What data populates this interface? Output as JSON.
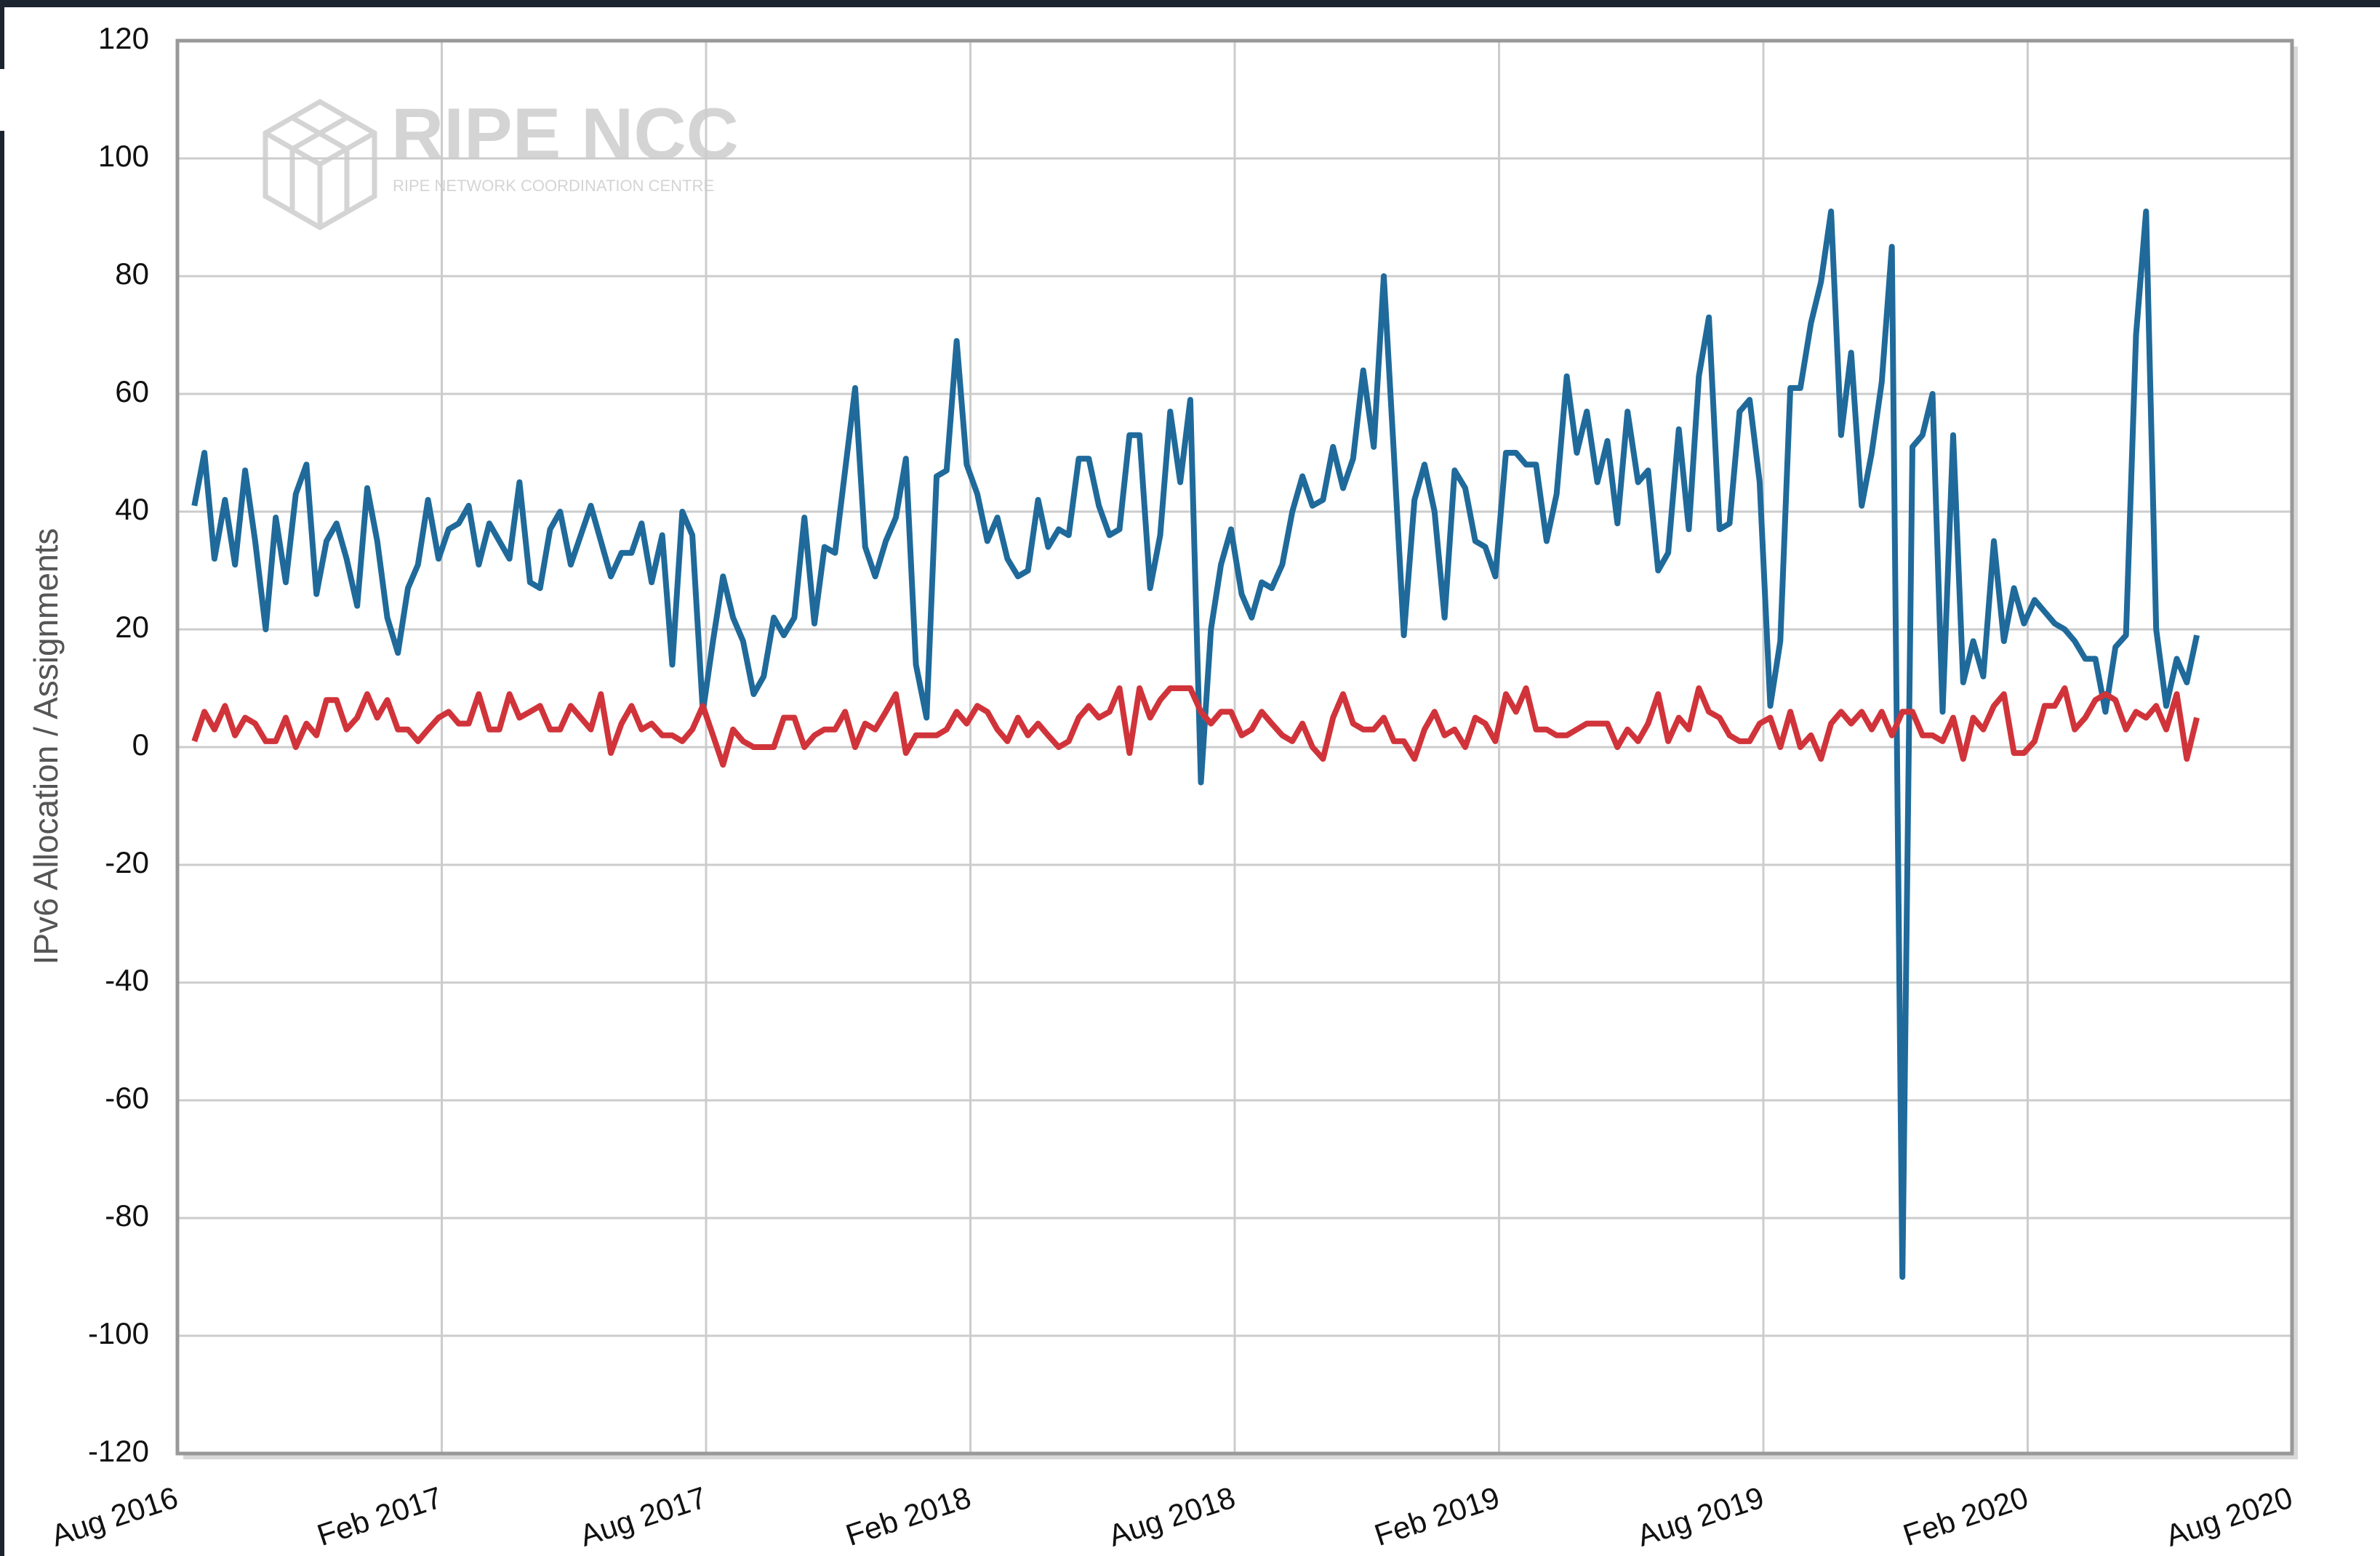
{
  "chart_data": {
    "type": "line",
    "watermark": {
      "title": "RIPE NCC",
      "subtitle": "RIPE NETWORK COORDINATION CENTRE"
    },
    "y_label": "IPv6 Allocation / Assignments",
    "xlim": [
      2016.583,
      2020.583
    ],
    "xticks": [
      {
        "value": 2016.583,
        "label": "Aug 2016"
      },
      {
        "value": 2017.083,
        "label": "Feb 2017"
      },
      {
        "value": 2017.583,
        "label": "Aug 2017"
      },
      {
        "value": 2018.083,
        "label": "Feb 2018"
      },
      {
        "value": 2018.583,
        "label": "Aug 2018"
      },
      {
        "value": 2019.083,
        "label": "Feb 2019"
      },
      {
        "value": 2019.583,
        "label": "Aug 2019"
      },
      {
        "value": 2020.083,
        "label": "Feb 2020"
      },
      {
        "value": 2020.583,
        "label": "Aug 2020"
      }
    ],
    "ylim": [
      -120,
      120
    ],
    "yticks": [
      -120,
      -100,
      -80,
      -60,
      -40,
      -20,
      0,
      20,
      40,
      60,
      80,
      100,
      120
    ],
    "grid": true,
    "x": [
      2016.615,
      2016.634,
      2016.653,
      2016.673,
      2016.692,
      2016.711,
      2016.73,
      2016.75,
      2016.769,
      2016.788,
      2016.807,
      2016.827,
      2016.846,
      2016.865,
      2016.884,
      2016.903,
      2016.923,
      2016.942,
      2016.961,
      2016.98,
      2017.0,
      2017.019,
      2017.038,
      2017.057,
      2017.077,
      2017.096,
      2017.115,
      2017.134,
      2017.153,
      2017.173,
      2017.192,
      2017.211,
      2017.23,
      2017.25,
      2017.269,
      2017.288,
      2017.307,
      2017.327,
      2017.346,
      2017.365,
      2017.384,
      2017.403,
      2017.423,
      2017.442,
      2017.461,
      2017.48,
      2017.5,
      2017.519,
      2017.538,
      2017.557,
      2017.577,
      2017.596,
      2017.615,
      2017.634,
      2017.653,
      2017.673,
      2017.692,
      2017.711,
      2017.73,
      2017.75,
      2017.769,
      2017.788,
      2017.807,
      2017.827,
      2017.846,
      2017.865,
      2017.884,
      2017.903,
      2017.923,
      2017.942,
      2017.961,
      2017.98,
      2018.0,
      2018.019,
      2018.038,
      2018.057,
      2018.076,
      2018.096,
      2018.115,
      2018.134,
      2018.153,
      2018.173,
      2018.192,
      2018.211,
      2018.23,
      2018.25,
      2018.269,
      2018.288,
      2018.307,
      2018.326,
      2018.346,
      2018.365,
      2018.384,
      2018.403,
      2018.423,
      2018.442,
      2018.461,
      2018.48,
      2018.499,
      2018.519,
      2018.538,
      2018.557,
      2018.576,
      2018.596,
      2018.615,
      2018.634,
      2018.653,
      2018.673,
      2018.692,
      2018.711,
      2018.73,
      2018.75,
      2018.769,
      2018.788,
      2018.807,
      2018.826,
      2018.846,
      2018.865,
      2018.884,
      2018.903,
      2018.923,
      2018.942,
      2018.961,
      2018.98,
      2018.999,
      2019.019,
      2019.038,
      2019.057,
      2019.076,
      2019.096,
      2019.115,
      2019.134,
      2019.153,
      2019.173,
      2019.192,
      2019.211,
      2019.23,
      2019.249,
      2019.269,
      2019.288,
      2019.307,
      2019.326,
      2019.346,
      2019.365,
      2019.384,
      2019.403,
      2019.423,
      2019.442,
      2019.461,
      2019.48,
      2019.5,
      2019.519,
      2019.538,
      2019.557,
      2019.576,
      2019.596,
      2019.615,
      2019.634,
      2019.653,
      2019.673,
      2019.692,
      2019.711,
      2019.73,
      2019.749,
      2019.769,
      2019.788,
      2019.807,
      2019.826,
      2019.846,
      2019.865,
      2019.884,
      2019.903,
      2019.922,
      2019.942,
      2019.961,
      2019.98,
      2019.999,
      2020.019,
      2020.038,
      2020.057,
      2020.076,
      2020.096,
      2020.115,
      2020.134,
      2020.153,
      2020.172,
      2020.192,
      2020.211,
      2020.23,
      2020.249,
      2020.269,
      2020.288,
      2020.307,
      2020.326,
      2020.345,
      2020.365,
      2020.384,
      2020.403
    ],
    "series": [
      {
        "color": "#1f6a9a",
        "values": [
          41,
          50,
          32,
          42,
          31,
          47,
          35,
          20,
          39,
          28,
          43,
          48,
          26,
          35,
          38,
          32,
          24,
          44,
          35,
          22,
          16,
          27,
          31,
          42,
          32,
          37,
          38,
          41,
          31,
          38,
          35,
          32,
          45,
          28,
          27,
          37,
          40,
          31,
          36,
          41,
          35,
          29,
          33,
          33,
          38,
          28,
          36,
          14,
          40,
          36,
          6,
          18,
          29,
          22,
          18,
          9,
          12,
          22,
          19,
          22,
          39,
          21,
          34,
          33,
          47,
          61,
          34,
          29,
          35,
          39,
          49,
          14,
          5,
          46,
          47,
          69,
          48,
          43,
          35,
          39,
          32,
          29,
          30,
          42,
          34,
          37,
          36,
          49,
          49,
          41,
          36,
          37,
          53,
          53,
          27,
          36,
          57,
          45,
          59,
          -6,
          20,
          31,
          37,
          26,
          22,
          28,
          27,
          31,
          40,
          46,
          41,
          42,
          51,
          44,
          49,
          64,
          51,
          80,
          50,
          19,
          42,
          48,
          40,
          22,
          47,
          44,
          35,
          34,
          29,
          50,
          50,
          48,
          48,
          35,
          43,
          63,
          50,
          57,
          45,
          52,
          38,
          57,
          45,
          47,
          30,
          33,
          54,
          37,
          63,
          73,
          37,
          38,
          57,
          59,
          45,
          7,
          18,
          61,
          61,
          72,
          79,
          91,
          53,
          67,
          41,
          50,
          62,
          85,
          -90,
          51,
          53,
          60,
          6,
          53,
          11,
          18,
          12,
          35,
          18,
          27,
          21,
          25,
          23,
          21,
          20,
          18,
          15,
          15,
          6,
          17,
          19,
          70,
          91,
          20,
          7,
          15,
          11,
          19
        ]
      },
      {
        "color": "#d0343a",
        "values": [
          1,
          6,
          3,
          7,
          2,
          5,
          4,
          1,
          1,
          5,
          0,
          4,
          2,
          8,
          8,
          3,
          5,
          9,
          5,
          8,
          3,
          3,
          1,
          3,
          5,
          6,
          4,
          4,
          9,
          3,
          3,
          9,
          5,
          6,
          7,
          3,
          3,
          7,
          5,
          3,
          9,
          -1,
          4,
          7,
          3,
          4,
          2,
          2,
          1,
          3,
          7,
          2,
          -3,
          3,
          1,
          0,
          0,
          0,
          5,
          5,
          0,
          2,
          3,
          3,
          6,
          0,
          4,
          3,
          6,
          9,
          -1,
          2,
          2,
          2,
          3,
          6,
          4,
          7,
          6,
          3,
          1,
          5,
          2,
          4,
          2,
          0,
          1,
          5,
          7,
          5,
          6,
          10,
          -1,
          10,
          5,
          8,
          10,
          10,
          10,
          6,
          4,
          6,
          6,
          2,
          3,
          6,
          4,
          2,
          1,
          4,
          0,
          -2,
          5,
          9,
          4,
          3,
          3,
          5,
          1,
          1,
          -2,
          3,
          6,
          2,
          3,
          0,
          5,
          4,
          1,
          9,
          6,
          10,
          3,
          3,
          2,
          2,
          3,
          4,
          4,
          4,
          0,
          3,
          1,
          4,
          9,
          1,
          5,
          3,
          10,
          6,
          5,
          2,
          1,
          1,
          4,
          5,
          0,
          6,
          0,
          2,
          -2,
          4,
          6,
          4,
          6,
          3,
          6,
          2,
          6,
          6,
          2,
          2,
          1,
          5,
          -2,
          5,
          3,
          7,
          9,
          -1,
          -1,
          1,
          7,
          7,
          10,
          3,
          5,
          8,
          9,
          8,
          3,
          6,
          5,
          7,
          3,
          9,
          -2,
          5
        ]
      }
    ]
  }
}
